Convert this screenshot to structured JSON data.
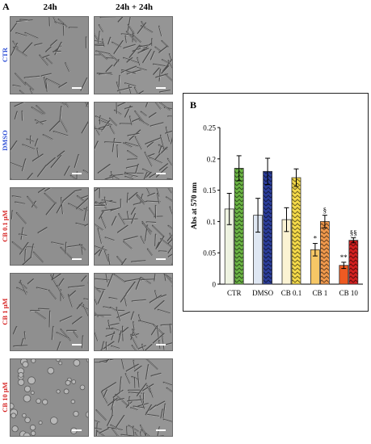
{
  "panel_a": {
    "letter": "A",
    "columns": [
      "24h",
      "24h + 24h"
    ],
    "rows": [
      {
        "label": "CTR",
        "color": "#2e4fd6"
      },
      {
        "label": "DMSO",
        "color": "#2e4fd6"
      },
      {
        "label": "CB 0.1 μM",
        "color": "#d62424"
      },
      {
        "label": "CB 1 μM",
        "color": "#d62424"
      },
      {
        "label": "CB 10 μM",
        "color": "#d62424"
      }
    ]
  },
  "chart_data": {
    "panel_letter": "B",
    "type": "bar",
    "ylabel": "Abs at 570 nm",
    "ylim": [
      0,
      0.25
    ],
    "yticks": [
      "0",
      "0.05",
      "0.1",
      "0.15",
      "0.2",
      "0.25"
    ],
    "categories": [
      "CTR",
      "DMSO",
      "CB 0.1",
      "CB 1",
      "CB 10"
    ],
    "series": [
      {
        "values": [
          0.12,
          0.11,
          0.103,
          0.055,
          0.03
        ],
        "errors": [
          0.025,
          0.027,
          0.019,
          0.01,
          0.005
        ],
        "colors": [
          "#eef3e1",
          "#dfe7f3",
          "#fbf3d3",
          "#f6c766",
          "#ee5a22"
        ],
        "annotations": [
          "",
          "",
          "",
          "*",
          "**"
        ]
      },
      {
        "values": [
          0.185,
          0.18,
          0.17,
          0.1,
          0.07
        ],
        "errors": [
          0.02,
          0.021,
          0.014,
          0.01,
          0.004
        ],
        "colors": [
          "#6bb544",
          "#2b3d9a",
          "#f7dc4a",
          "#f29a4d",
          "#d42020"
        ],
        "annotations": [
          "",
          "",
          "",
          "§",
          "§§"
        ]
      }
    ],
    "grid": false
  }
}
